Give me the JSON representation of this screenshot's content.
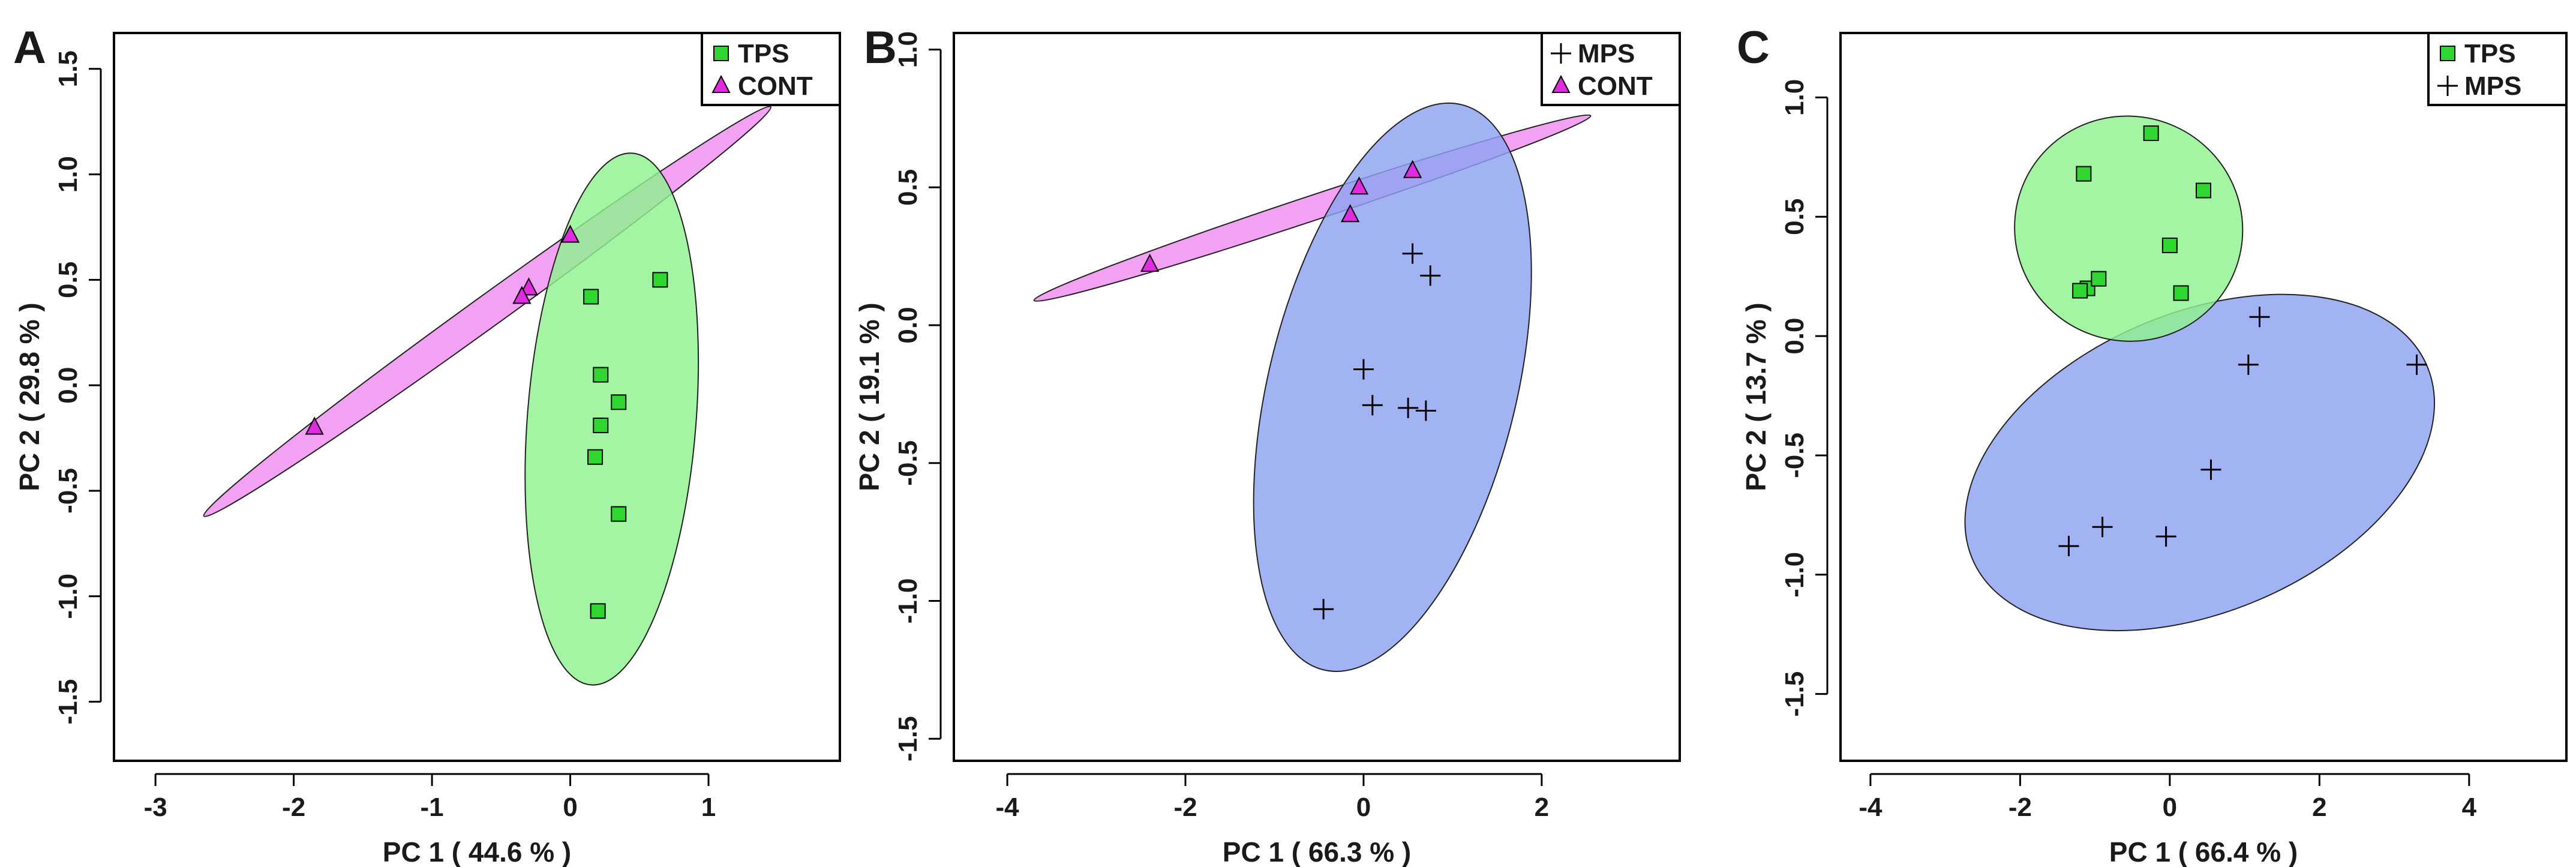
{
  "chart_data": [
    {
      "type": "scatter",
      "panel_label": "A",
      "xlabel": "PC 1 ( 44.6 % )",
      "ylabel": "PC 2 ( 29.8 % )",
      "xlim": [
        -3.3,
        1.95
      ],
      "ylim": [
        -1.78,
        1.67
      ],
      "xticks": [
        -3,
        -2,
        -1,
        0,
        1
      ],
      "yticks": [
        -1.5,
        -1.0,
        -0.5,
        0.0,
        0.5,
        1.0,
        1.5
      ],
      "xtick_labels": [
        "-3",
        "-2",
        "-1",
        "0",
        "1"
      ],
      "ytick_labels": [
        "-1.5",
        "-1.0",
        "-0.5",
        "0.0",
        "0.5",
        "1.0",
        "1.5"
      ],
      "legend": {
        "position": "top-right",
        "entries": [
          {
            "name": "TPS",
            "marker": "square"
          },
          {
            "name": "CONT",
            "marker": "triangle"
          }
        ]
      },
      "series": [
        {
          "name": "TPS",
          "marker": "square",
          "color": "#2fd62f",
          "points": [
            [
              0.15,
              0.42
            ],
            [
              0.65,
              0.5
            ],
            [
              0.22,
              0.05
            ],
            [
              0.35,
              -0.08
            ],
            [
              0.22,
              -0.19
            ],
            [
              0.18,
              -0.34
            ],
            [
              0.35,
              -0.61
            ],
            [
              0.2,
              -1.07
            ]
          ]
        },
        {
          "name": "CONT",
          "marker": "triangle",
          "color": "#e02be0",
          "points": [
            [
              0.0,
              0.71
            ],
            [
              -0.3,
              0.46
            ],
            [
              -0.35,
              0.42
            ],
            [
              -1.85,
              -0.2
            ]
          ]
        }
      ],
      "ellipses": [
        {
          "group": "CONT",
          "color": "#f08ef0",
          "end1": [
            -2.65,
            -0.62
          ],
          "end2": [
            1.45,
            1.32
          ],
          "minor_half": 0.075
        },
        {
          "group": "TPS",
          "color": "#8ff28f",
          "end1": [
            0.15,
            -1.42
          ],
          "end2": [
            0.45,
            1.1
          ],
          "minor_half": 0.4
        }
      ]
    },
    {
      "type": "scatter",
      "panel_label": "B",
      "xlabel": "PC 1 ( 66.3 % )",
      "ylabel": "PC 2 ( 19.1 % )",
      "xlim": [
        -4.6,
        3.55
      ],
      "ylim": [
        -1.58,
        1.06
      ],
      "xticks": [
        -4,
        -2,
        0,
        2
      ],
      "yticks": [
        -1.5,
        -1.0,
        -0.5,
        0.0,
        0.5,
        1.0
      ],
      "xtick_labels": [
        "-4",
        "-2",
        "0",
        "2"
      ],
      "ytick_labels": [
        "-1.5",
        "-1.0",
        "-0.5",
        "0.0",
        "0.5",
        "1.0"
      ],
      "legend": {
        "position": "top-right",
        "entries": [
          {
            "name": "MPS",
            "marker": "plus"
          },
          {
            "name": "CONT",
            "marker": "triangle"
          }
        ]
      },
      "series": [
        {
          "name": "MPS",
          "marker": "plus",
          "color": "#000000",
          "points": [
            [
              0.55,
              0.26
            ],
            [
              0.75,
              0.18
            ],
            [
              0.0,
              -0.16
            ],
            [
              0.1,
              -0.29
            ],
            [
              0.5,
              -0.3
            ],
            [
              0.7,
              -0.31
            ],
            [
              -0.45,
              -1.03
            ]
          ]
        },
        {
          "name": "CONT",
          "marker": "triangle",
          "color": "#e02be0",
          "points": [
            [
              0.55,
              0.56
            ],
            [
              -0.05,
              0.5
            ],
            [
              -0.15,
              0.4
            ],
            [
              -2.4,
              0.22
            ]
          ]
        }
      ],
      "ellipses": [
        {
          "group": "CONT",
          "color": "#f08ef0",
          "end1": [
            -3.7,
            0.09
          ],
          "end2": [
            2.55,
            0.76
          ],
          "minor_half": 0.045
        },
        {
          "group": "MPS",
          "color": "#8ea2f2",
          "end1": [
            -0.45,
            -1.25
          ],
          "end2": [
            1.1,
            0.8
          ],
          "minor_half": 0.45
        }
      ]
    },
    {
      "type": "scatter",
      "panel_label": "C",
      "xlabel": "PC 1 ( 66.4 % )",
      "ylabel": "PC 2 ( 13.7 % )",
      "xlim": [
        -4.4,
        5.3
      ],
      "ylim": [
        -1.78,
        1.27
      ],
      "xticks": [
        -4,
        -2,
        0,
        2,
        4
      ],
      "yticks": [
        -1.5,
        -1.0,
        -0.5,
        0.0,
        0.5,
        1.0
      ],
      "xtick_labels": [
        "-4",
        "-2",
        "0",
        "2",
        "4"
      ],
      "ytick_labels": [
        "-1.5",
        "-1.0",
        "-0.5",
        "0.0",
        "0.5",
        "1.0"
      ],
      "legend": {
        "position": "top-right",
        "entries": [
          {
            "name": "TPS",
            "marker": "square"
          },
          {
            "name": "MPS",
            "marker": "plus"
          }
        ]
      },
      "series": [
        {
          "name": "TPS",
          "marker": "square",
          "color": "#2fd62f",
          "points": [
            [
              -0.25,
              0.85
            ],
            [
              -1.15,
              0.68
            ],
            [
              0.45,
              0.61
            ],
            [
              0.0,
              0.38
            ],
            [
              -1.1,
              0.2
            ],
            [
              -0.95,
              0.24
            ],
            [
              -1.2,
              0.19
            ],
            [
              0.15,
              0.18
            ]
          ]
        },
        {
          "name": "MPS",
          "marker": "plus",
          "color": "#000000",
          "points": [
            [
              1.2,
              0.08
            ],
            [
              1.05,
              -0.12
            ],
            [
              3.3,
              -0.12
            ],
            [
              0.55,
              -0.56
            ],
            [
              -0.9,
              -0.8
            ],
            [
              -0.05,
              -0.84
            ],
            [
              -1.35,
              -0.88
            ]
          ]
        }
      ],
      "ellipses": [
        {
          "group": "MPS",
          "color": "#8ea2f2",
          "center": [
            0.4,
            -0.53
          ],
          "a": 3.3,
          "b": 0.85,
          "angle": 23
        },
        {
          "group": "TPS",
          "color": "#8ff28f",
          "center": [
            -0.55,
            0.45
          ],
          "a": 1.5,
          "b": 0.65,
          "angle": 68
        }
      ]
    }
  ]
}
